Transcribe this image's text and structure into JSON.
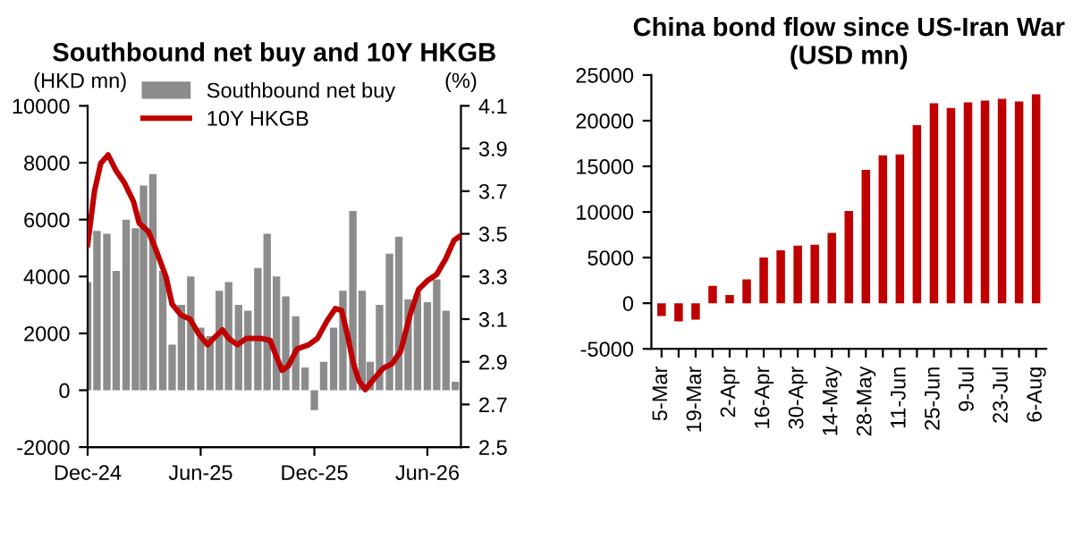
{
  "chart_data": [
    {
      "type": "bar",
      "title": "Southbound net buy and 10Y HKGB",
      "ylabel": "(HKD mn)",
      "y2label": "(%)",
      "series": [
        {
          "name": "Southbound net buy",
          "type": "bar",
          "color": "#8c8c8c",
          "x": [
            "2024-12-01",
            "2024-12-16",
            "2025-01-01",
            "2025-01-16",
            "2025-02-01",
            "2025-02-16",
            "2025-03-01",
            "2025-03-16",
            "2025-04-01",
            "2025-04-16",
            "2025-05-01",
            "2025-05-16",
            "2025-06-01",
            "2025-06-16",
            "2025-07-01",
            "2025-07-16",
            "2025-08-01",
            "2025-08-16",
            "2025-09-01",
            "2025-09-16",
            "2025-10-01",
            "2025-10-16",
            "2025-11-01",
            "2025-11-16",
            "2025-12-01",
            "2025-12-16",
            "2026-01-01",
            "2026-01-16",
            "2026-02-01",
            "2026-02-16",
            "2026-03-01",
            "2026-03-16",
            "2026-04-01",
            "2026-04-16",
            "2026-05-01",
            "2026-05-16",
            "2026-06-01",
            "2026-06-16",
            "2026-07-01",
            "2026-07-16"
          ],
          "values": [
            3800,
            5600,
            5500,
            4200,
            6000,
            5700,
            7200,
            7600,
            4200,
            1600,
            3000,
            4000,
            2200,
            1900,
            3500,
            3800,
            3000,
            2800,
            4300,
            5500,
            4000,
            3300,
            2600,
            800,
            -700,
            1000,
            2200,
            3500,
            6300,
            3500,
            1000,
            3000,
            4800,
            5400,
            3200,
            3400,
            3100,
            3900,
            2800,
            300
          ]
        },
        {
          "name": "10Y HKGB",
          "type": "line",
          "axis": "y2",
          "color": "#c00000",
          "x": [
            "2024-12-01",
            "2024-12-12",
            "2024-12-22",
            "2025-01-03",
            "2025-01-15",
            "2025-01-29",
            "2025-02-13",
            "2025-02-22",
            "2025-03-09",
            "2025-03-23",
            "2025-04-06",
            "2025-04-16",
            "2025-04-30",
            "2025-05-15",
            "2025-05-29",
            "2025-06-12",
            "2025-06-22",
            "2025-07-06",
            "2025-07-16",
            "2025-07-30",
            "2025-08-14",
            "2025-09-06",
            "2025-09-21",
            "2025-09-30",
            "2025-10-10",
            "2025-10-20",
            "2025-11-03",
            "2025-11-22",
            "2025-12-06",
            "2025-12-21",
            "2026-01-04",
            "2026-01-14",
            "2026-01-23",
            "2026-02-02",
            "2026-02-11",
            "2026-02-21",
            "2026-03-07",
            "2026-03-22",
            "2026-04-05",
            "2026-04-19",
            "2026-05-04",
            "2026-05-18",
            "2026-06-01",
            "2026-06-16",
            "2026-06-30",
            "2026-07-14",
            "2026-07-24"
          ],
          "values": [
            3.45,
            3.7,
            3.83,
            3.87,
            3.8,
            3.74,
            3.65,
            3.55,
            3.51,
            3.41,
            3.3,
            3.17,
            3.12,
            3.1,
            3.03,
            2.98,
            3.01,
            3.05,
            3.01,
            2.98,
            3.01,
            3.01,
            3.0,
            2.93,
            2.86,
            2.88,
            2.96,
            2.98,
            3.01,
            3.09,
            3.15,
            3.14,
            3.03,
            2.89,
            2.81,
            2.77,
            2.82,
            2.87,
            2.89,
            2.95,
            3.12,
            3.24,
            3.28,
            3.31,
            3.38,
            3.47,
            3.49
          ]
        }
      ],
      "xlim": [
        "2024-12-01",
        "2026-07-25"
      ],
      "xticks": [
        {
          "value": "2024-12-01",
          "label": "Dec-24"
        },
        {
          "value": "2025-06-01",
          "label": "Jun-25"
        },
        {
          "value": "2025-12-01",
          "label": "Dec-25"
        },
        {
          "value": "2026-06-01",
          "label": "Jun-26"
        }
      ],
      "ylim": [
        -2000,
        10000
      ],
      "yticks": [
        -2000,
        0,
        2000,
        4000,
        6000,
        8000,
        10000
      ],
      "y2lim": [
        2.5,
        4.1
      ],
      "y2ticks": [
        2.5,
        2.7,
        2.9,
        3.1,
        3.3,
        3.5,
        3.7,
        3.9,
        4.1
      ],
      "legend": "top left",
      "grid": false
    },
    {
      "type": "bar",
      "title": "China bond flow since US-Iran War (USD mn)",
      "color": "#c00000",
      "categories": [
        "5-Mar",
        null,
        "19-Mar",
        null,
        "2-Apr",
        null,
        "16-Apr",
        null,
        "30-Apr",
        null,
        "14-May",
        null,
        "28-May",
        null,
        "11-Jun",
        null,
        "25-Jun",
        null,
        "9-Jul",
        null,
        "23-Jul",
        null,
        "6-Aug"
      ],
      "values": [
        -1400,
        -2000,
        -1800,
        1900,
        900,
        2600,
        5000,
        5800,
        6300,
        6400,
        7700,
        10100,
        14600,
        16200,
        16300,
        19500,
        21900,
        21400,
        22000,
        22200,
        22400,
        22100,
        22900
      ],
      "ylim": [
        -5000,
        25000
      ],
      "yticks": [
        -5000,
        0,
        5000,
        10000,
        15000,
        20000,
        25000
      ],
      "grid": false,
      "legend": false
    }
  ]
}
